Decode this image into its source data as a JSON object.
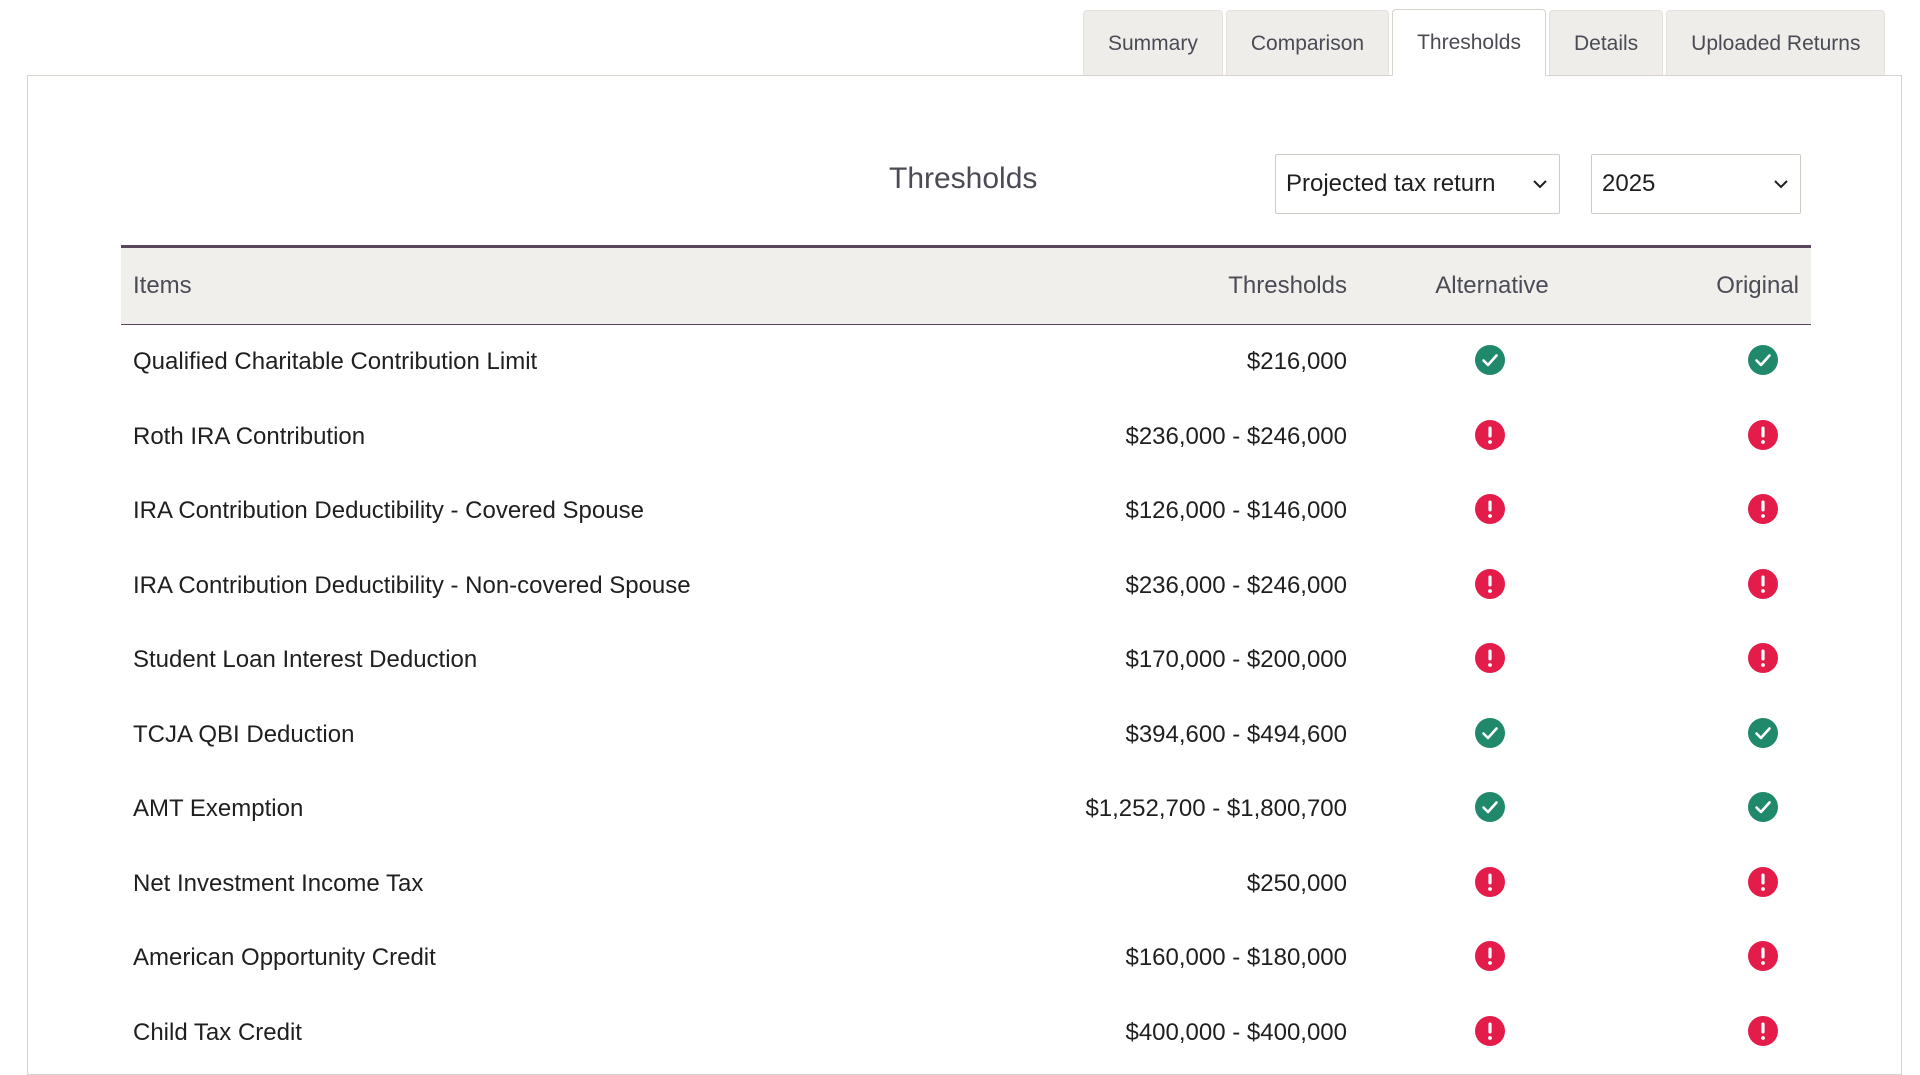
{
  "tabs": [
    {
      "label": "Summary",
      "active": false
    },
    {
      "label": "Comparison",
      "active": false
    },
    {
      "label": "Thresholds",
      "active": true
    },
    {
      "label": "Details",
      "active": false
    },
    {
      "label": "Uploaded Returns",
      "active": false
    }
  ],
  "page": {
    "title": "Thresholds",
    "return_select": {
      "value": "Projected tax return"
    },
    "year_select": {
      "value": "2025"
    }
  },
  "table": {
    "headers": {
      "items": "Items",
      "thresholds": "Thresholds",
      "alternative": "Alternative",
      "original": "Original"
    },
    "rows": [
      {
        "item": "Qualified Charitable Contribution Limit",
        "threshold": "$216,000",
        "alternative": "check-icon",
        "original": "check-icon"
      },
      {
        "item": "Roth IRA Contribution",
        "threshold": "$236,000 - $246,000",
        "alternative": "alert-icon",
        "original": "alert-icon"
      },
      {
        "item": "IRA Contribution Deductibility - Covered Spouse",
        "threshold": "$126,000 - $146,000",
        "alternative": "alert-icon",
        "original": "alert-icon"
      },
      {
        "item": "IRA Contribution Deductibility - Non-covered Spouse",
        "threshold": "$236,000 - $246,000",
        "alternative": "alert-icon",
        "original": "alert-icon"
      },
      {
        "item": "Student Loan Interest Deduction",
        "threshold": "$170,000 - $200,000",
        "alternative": "alert-icon",
        "original": "alert-icon"
      },
      {
        "item": "TCJA QBI Deduction",
        "threshold": "$394,600 - $494,600",
        "alternative": "check-icon",
        "original": "check-icon"
      },
      {
        "item": "AMT Exemption",
        "threshold": "$1,252,700 - $1,800,700",
        "alternative": "check-icon",
        "original": "check-icon"
      },
      {
        "item": "Net Investment Income Tax",
        "threshold": "$250,000",
        "alternative": "alert-icon",
        "original": "alert-icon"
      },
      {
        "item": "American Opportunity Credit",
        "threshold": "$160,000 - $180,000",
        "alternative": "alert-icon",
        "original": "alert-icon"
      },
      {
        "item": "Child Tax Credit",
        "threshold": "$400,000 - $400,000",
        "alternative": "alert-icon",
        "original": "alert-icon"
      }
    ]
  },
  "colors": {
    "check": "#20896b",
    "alert": "#e31c4a",
    "header_border": "#57465c"
  }
}
